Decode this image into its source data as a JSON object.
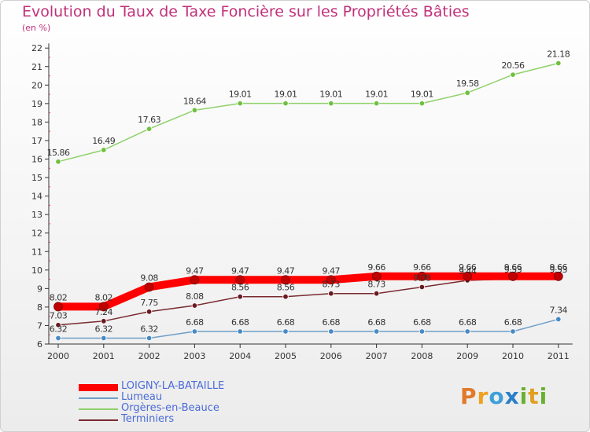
{
  "header": {
    "title": "Evolution du Taux de Taxe Foncière sur les Propriétés Bâties",
    "subtitle": "(en %)"
  },
  "brand": {
    "text": "Proxiti",
    "colors": [
      "#e07a2a",
      "#f0a020",
      "#3fa0d8",
      "#2a80c8",
      "#6ab030",
      "#e0a020"
    ]
  },
  "chart_data": {
    "type": "line",
    "title": "Evolution du Taux de Taxe Foncière sur les Propriétés Bâties",
    "ylabel": "(en %)",
    "xlabel": "",
    "x": [
      "2000",
      "2001",
      "2002",
      "2003",
      "2004",
      "2005",
      "2006",
      "2007",
      "2008",
      "2009",
      "2010",
      "2011"
    ],
    "ylim": [
      6,
      22
    ],
    "yticks": [
      6,
      7,
      8,
      9,
      10,
      11,
      12,
      13,
      14,
      15,
      16,
      17,
      18,
      19,
      20,
      21,
      22
    ],
    "grid": false,
    "legend_position": "bottom-left",
    "series": [
      {
        "name": "LOIGNY-LA-BATAILLE",
        "color": "#ff0000",
        "marker": "#c00000",
        "emphasis": true,
        "values": [
          8.02,
          8.02,
          9.08,
          9.47,
          9.47,
          9.47,
          9.47,
          9.66,
          9.66,
          9.66,
          9.66,
          9.66
        ],
        "labels": [
          "8.02",
          "8.02",
          "9.08",
          "9.47",
          "9.47",
          "9.47",
          "9.47",
          "9.66",
          "9.66",
          "9.66",
          "9.66",
          "9.66"
        ]
      },
      {
        "name": "Lumeau",
        "color": "#6f9fc9",
        "marker": "#4a8ac4",
        "values": [
          6.32,
          6.32,
          6.32,
          6.68,
          6.68,
          6.68,
          6.68,
          6.68,
          6.68,
          6.68,
          6.68,
          7.34
        ],
        "labels": [
          "6.32",
          "6.32",
          "6.32",
          "6.68",
          "6.68",
          "6.68",
          "6.68",
          "6.68",
          "6.68",
          "6.68",
          "6.68",
          "7.34"
        ]
      },
      {
        "name": "Orgères-en-Beauce",
        "color": "#8fd16a",
        "marker": "#70c040",
        "values": [
          15.86,
          16.49,
          17.63,
          18.64,
          19.01,
          19.01,
          19.01,
          19.01,
          19.01,
          19.58,
          20.56,
          21.18
        ],
        "labels": [
          "15.86",
          "16.49",
          "17.63",
          "18.64",
          "19.01",
          "19.01",
          "19.01",
          "19.01",
          "19.01",
          "19.58",
          "20.56",
          "21.18"
        ]
      },
      {
        "name": "Terminiers",
        "color": "#7a2a30",
        "marker": "#6a1a20",
        "values": [
          7.03,
          7.24,
          7.75,
          8.08,
          8.56,
          8.56,
          8.73,
          8.73,
          9.08,
          9.44,
          9.53,
          9.53
        ],
        "labels": [
          "7.03",
          "7.24",
          "7.75",
          "8.08",
          "8.56",
          "8.56",
          "8.73",
          "8.73",
          "9.08",
          "9.44",
          "9.53",
          "9.53"
        ]
      }
    ]
  }
}
